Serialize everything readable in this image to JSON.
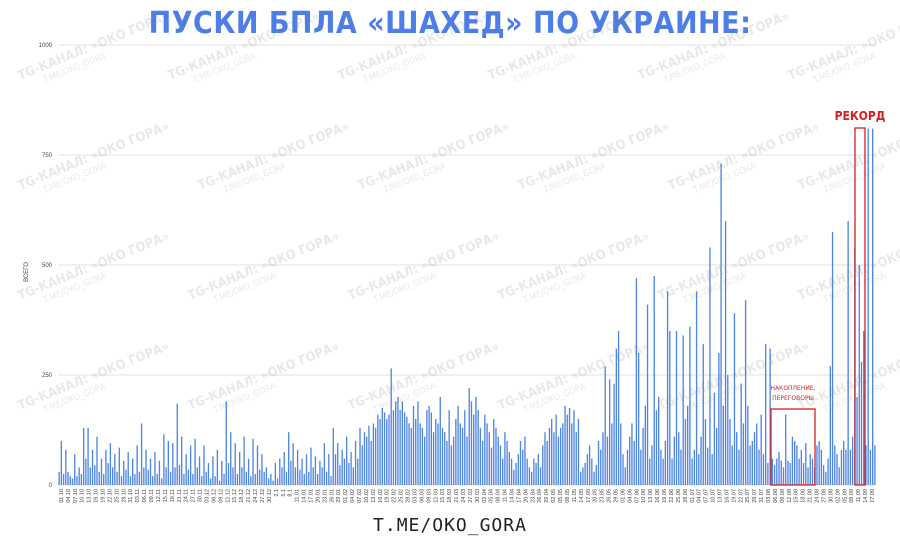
{
  "title": "ПУСКИ БПЛА «ШАХЕД» ПО УКРАИНЕ:",
  "footer": "T.ME/OKO_GORA",
  "watermark": "TG-КАНАЛ: «ОКО ГОРА»",
  "watermark_sub": "T.ME/OKO_GORA",
  "annotations": {
    "record": "РЕКОРД",
    "accumulation_line1": "НАКОПЛЕНИЕ,",
    "accumulation_line2": "ПЕРЕГОВОРЫ"
  },
  "colors": {
    "bar": "#4f86e3",
    "title": "#4d7ee8",
    "annotation": "#d42020",
    "grid": "#d8d8d8"
  },
  "chart_data": {
    "type": "bar",
    "title": "ПУСКИ БПЛА «ШАХЕД» ПО УКРАИНЕ:",
    "xlabel": "",
    "ylabel": "ВСЕГО",
    "ylim": [
      0,
      1000
    ],
    "yticks": [
      0,
      250,
      500,
      750,
      1000
    ],
    "grid": true,
    "x_tick_labels": [
      "01.10",
      "04.10",
      "07.10",
      "10.10",
      "13.10",
      "16.10",
      "19.10",
      "22.10",
      "25.10",
      "28.10",
      "31.10",
      "03.11",
      "06.11",
      "09.11",
      "12.11",
      "15.11",
      "18.11",
      "21.11",
      "24.11",
      "27.11",
      "30.11",
      "03.12",
      "06.12",
      "09.12",
      "12.12",
      "15.12",
      "18.12",
      "21.12",
      "24.12",
      "27.12",
      "30.12",
      "2.1",
      "5.1",
      "8.1",
      "11.01",
      "14.01",
      "17.01",
      "20.01",
      "23.01",
      "26.01",
      "29.01",
      "01.02",
      "04.02",
      "07.02",
      "10.02",
      "13.02",
      "16.02",
      "19.02",
      "22.02",
      "25.02",
      "28.02",
      "03.03",
      "06.03",
      "09.03",
      "12.03",
      "15.03",
      "18.03",
      "21.03",
      "24.03",
      "27.03",
      "30.03",
      "02.04",
      "05.04",
      "08.04",
      "11.04",
      "14.04",
      "17.04",
      "20.04",
      "23.04",
      "26.04",
      "29.04",
      "02.05",
      "05.05",
      "08.05",
      "11.05",
      "14.05",
      "17.05",
      "20.05",
      "23.05",
      "26.05",
      "29.05",
      "01.06",
      "04.06",
      "07.06",
      "10.06",
      "13.06",
      "16.06",
      "19.06",
      "22.06",
      "25.06",
      "28.06",
      "01.07",
      "04.07",
      "07.07",
      "10.07",
      "13.07",
      "16.07",
      "19.07",
      "22.07",
      "25.07",
      "28.07",
      "31.07",
      "03.08",
      "06.08",
      "09.08",
      "12.08",
      "15.08",
      "18.08",
      "21.08",
      "24.08",
      "27.08",
      "30.08",
      "02.09",
      "05.09",
      "08.09",
      "11.09",
      "14.09",
      "17.09"
    ],
    "values": [
      30,
      100,
      25,
      80,
      30,
      20,
      15,
      70,
      20,
      40,
      25,
      130,
      60,
      130,
      40,
      80,
      45,
      110,
      30,
      60,
      25,
      80,
      50,
      95,
      40,
      70,
      30,
      85,
      20,
      55,
      35,
      75,
      20,
      60,
      25,
      90,
      30,
      140,
      40,
      80,
      35,
      60,
      20,
      75,
      25,
      55,
      15,
      115,
      40,
      100,
      30,
      95,
      40,
      185,
      45,
      110,
      25,
      70,
      35,
      90,
      25,
      105,
      40,
      65,
      20,
      90,
      30,
      50,
      15,
      65,
      20,
      80,
      10,
      55,
      25,
      190,
      50,
      120,
      40,
      95,
      25,
      75,
      40,
      110,
      30,
      60,
      20,
      105,
      25,
      90,
      35,
      70,
      30,
      40,
      15,
      25,
      10,
      50,
      15,
      60,
      40,
      75,
      30,
      120,
      55,
      95,
      40,
      80,
      35,
      60,
      25,
      70,
      30,
      85,
      40,
      65,
      25,
      55,
      40,
      95,
      30,
      70,
      20,
      130,
      70,
      95,
      45,
      80,
      60,
      110,
      50,
      75,
      40,
      100,
      60,
      130,
      90,
      120,
      110,
      135,
      100,
      140,
      130,
      160,
      150,
      175,
      165,
      150,
      160,
      265,
      170,
      190,
      200,
      170,
      190,
      165,
      155,
      140,
      130,
      180,
      150,
      190,
      140,
      130,
      110,
      170,
      180,
      165,
      120,
      150,
      140,
      200,
      130,
      120,
      100,
      170,
      90,
      110,
      150,
      180,
      140,
      130,
      170,
      110,
      220,
      190,
      160,
      200,
      170,
      130,
      100,
      160,
      140,
      120,
      85,
      150,
      130,
      110,
      90,
      60,
      120,
      100,
      75,
      60,
      35,
      50,
      70,
      100,
      80,
      110,
      60,
      40,
      30,
      60,
      50,
      70,
      40,
      90,
      120,
      100,
      130,
      150,
      120,
      160,
      110,
      130,
      140,
      180,
      160,
      175,
      140,
      170,
      120,
      150,
      30,
      40,
      50,
      70,
      90,
      60,
      30,
      45,
      100,
      80,
      120,
      270,
      110,
      240,
      140,
      230,
      310,
      350,
      140,
      70,
      40,
      80,
      110,
      140,
      100,
      470,
      300,
      80,
      130,
      180,
      410,
      60,
      90,
      475,
      170,
      200,
      80,
      60,
      100,
      440,
      350,
      60,
      110,
      350,
      120,
      80,
      340,
      150,
      180,
      360,
      60,
      80,
      440,
      70,
      110,
      320,
      150,
      85,
      540,
      70,
      210,
      130,
      300,
      730,
      180,
      600,
      250,
      150,
      90,
      390,
      120,
      80,
      230,
      140,
      420,
      180,
      90,
      100,
      120,
      140,
      80,
      160,
      70,
      320,
      50,
      310,
      60,
      45,
      60,
      75,
      55,
      40,
      160,
      55,
      50,
      110,
      100,
      90,
      60,
      80,
      50,
      95,
      40,
      70,
      60,
      40,
      90,
      100,
      80,
      45,
      30,
      60,
      270,
      575,
      90,
      70,
      40,
      80,
      100,
      80,
      600,
      80,
      110,
      540,
      200,
      500,
      280,
      350,
      90,
      810,
      80,
      810,
      90
    ]
  }
}
